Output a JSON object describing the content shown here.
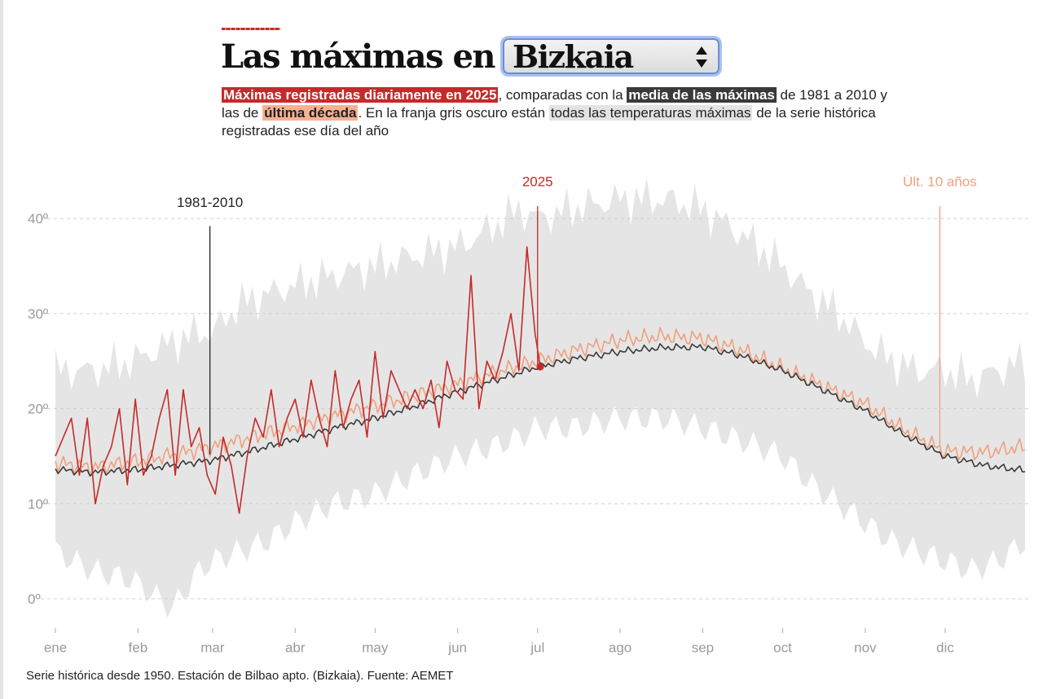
{
  "header": {
    "title_prefix": "Las máximas en",
    "province_select": {
      "value": "Bizkaia",
      "options": [
        "Bizkaia"
      ]
    }
  },
  "description": {
    "hl_2025": "Máximas registradas diariamente en 2025",
    "t1": ", comparadas con la ",
    "hl_mean": "media de las máximas",
    "t2": " de 1981 a 2010 y las de ",
    "hl_decade": "última década",
    "t3": ". En la franja gris oscuro están ",
    "hl_band": "todas las temperaturas máximas",
    "t4": " de la serie histórica registradas ese día del año"
  },
  "footer": {
    "source": "Serie histórica desde 1950. Estación de Bilbao apto. (Bizkaia). Fuente: AEMET"
  },
  "colors": {
    "y2025": "#c52a2a",
    "mean": "#3a3a3a",
    "decade": "#f0a07e",
    "band": "#e5e5e5",
    "grid": "#cfcfcf",
    "axis_text": "#9a9a9a"
  },
  "chart_data": {
    "type": "line",
    "title": "Las máximas en Bizkaia",
    "xlabel": "",
    "ylabel": "",
    "ylim": [
      -4,
      44
    ],
    "xlim": [
      1,
      365
    ],
    "y_ticks": [
      0,
      10,
      20,
      30,
      40
    ],
    "y_tick_labels": [
      "0º",
      "10º",
      "20º",
      "30º",
      "40º"
    ],
    "month_labels": [
      "ene",
      "feb",
      "mar",
      "abr",
      "may",
      "jun",
      "jul",
      "ago",
      "sep",
      "oct",
      "nov",
      "dic"
    ],
    "month_start_days": [
      1,
      32,
      60,
      91,
      121,
      152,
      182,
      213,
      244,
      274,
      305,
      335
    ],
    "series": [
      {
        "name": "Todas las máximas (1950–2024)",
        "kind": "band",
        "x": [
          1,
          15,
          30,
          45,
          55,
          60,
          70,
          80,
          91,
          105,
          121,
          135,
          152,
          165,
          175,
          182,
          195,
          213,
          230,
          244,
          255,
          265,
          274,
          285,
          295,
          305,
          315,
          325,
          335,
          345,
          355,
          365
        ],
        "upper": [
          24,
          24,
          25,
          27,
          28,
          28,
          31,
          32,
          33,
          34,
          35,
          36,
          37,
          39,
          41,
          40,
          41,
          42,
          42,
          41,
          39,
          37,
          35,
          32,
          30,
          27,
          25,
          24,
          24,
          23,
          24,
          25
        ],
        "lower": [
          5,
          3,
          2,
          -1,
          3,
          4,
          5,
          6,
          8,
          10,
          11,
          13,
          15,
          16,
          17,
          18,
          18,
          19,
          19,
          18,
          17,
          16,
          15,
          12,
          10,
          8,
          6,
          5,
          4,
          3,
          4,
          6
        ]
      },
      {
        "name": "1981-2010",
        "kind": "line",
        "x": [
          1,
          15,
          32,
          46,
          60,
          75,
          91,
          105,
          121,
          135,
          152,
          166,
          182,
          197,
          213,
          228,
          244,
          258,
          274,
          289,
          305,
          320,
          335,
          350,
          365
        ],
        "values": [
          13.6,
          13.3,
          13.6,
          14.1,
          14.6,
          15.6,
          16.8,
          17.9,
          19.0,
          20.2,
          21.8,
          23.0,
          24.4,
          25.3,
          26.0,
          26.4,
          26.5,
          25.6,
          24.0,
          22.0,
          19.8,
          17.2,
          15.0,
          14.0,
          13.5
        ]
      },
      {
        "name": "Últ. 10 años",
        "kind": "line",
        "x": [
          1,
          15,
          32,
          46,
          60,
          75,
          91,
          105,
          121,
          135,
          152,
          166,
          182,
          197,
          213,
          228,
          244,
          258,
          274,
          289,
          305,
          320,
          335,
          350,
          365
        ],
        "values": [
          14.3,
          13.8,
          14.5,
          15.2,
          16.0,
          17.0,
          18.2,
          19.2,
          20.3,
          21.3,
          22.6,
          23.8,
          25.0,
          26.2,
          27.2,
          27.6,
          27.4,
          26.2,
          24.2,
          22.4,
          20.5,
          17.7,
          15.5,
          15.4,
          16.0
        ]
      },
      {
        "name": "2025",
        "kind": "line",
        "x": [
          1,
          4,
          7,
          10,
          13,
          16,
          19,
          22,
          25,
          28,
          31,
          34,
          37,
          40,
          43,
          46,
          49,
          52,
          55,
          58,
          61,
          64,
          67,
          70,
          73,
          76,
          79,
          82,
          85,
          88,
          91,
          94,
          97,
          100,
          103,
          106,
          109,
          112,
          115,
          118,
          121,
          124,
          127,
          130,
          133,
          136,
          139,
          142,
          145,
          148,
          151,
          154,
          157,
          160,
          163,
          166,
          169,
          172,
          175,
          178,
          181,
          183
        ],
        "values": [
          15,
          17,
          19,
          13,
          19,
          10,
          14,
          16,
          20,
          12,
          21,
          13,
          15,
          19,
          22,
          13,
          22,
          16,
          18,
          13,
          11,
          17,
          14,
          9,
          15,
          19,
          17,
          22,
          16,
          19,
          21,
          17,
          23,
          19,
          16,
          24,
          18,
          21,
          23,
          17,
          26,
          19,
          24,
          22,
          20,
          22,
          20,
          23,
          18,
          25,
          22,
          21,
          34,
          20,
          25,
          23,
          26,
          30,
          24,
          37,
          28,
          24.4
        ],
        "last_point_marker": true
      }
    ],
    "annotations": [
      {
        "text": "1981-2010",
        "x": 59,
        "y": 15.2
      },
      {
        "text": "2025",
        "x": 182,
        "y": 24.4
      },
      {
        "text": "Últ. 10 años",
        "x": 333,
        "y": 16.2
      }
    ]
  }
}
